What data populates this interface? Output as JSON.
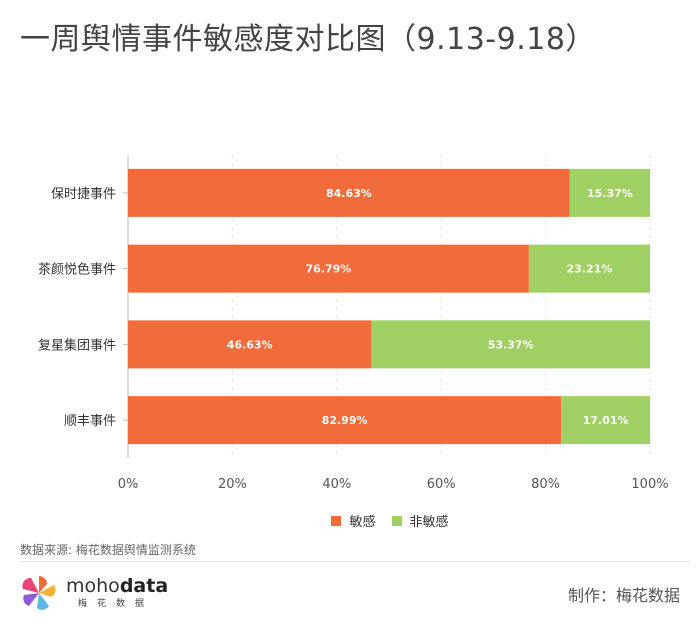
{
  "title": "一周舆情事件敏感度对比图（9.13-9.18）",
  "source": "数据来源: 梅花数据舆情监测系统",
  "brand": {
    "name_light": "moho",
    "name_bold": "data",
    "subtitle": "梅花数据"
  },
  "credit": "制作：梅花数据",
  "colors": {
    "sensitive": "#F26B3A",
    "non_sensitive": "#A0CF63",
    "grid": "#e6e6e6",
    "axis": "#bbbbbb"
  },
  "legend": [
    {
      "label": "敏感",
      "color": "#F26B3A"
    },
    {
      "label": "非敏感",
      "color": "#A0CF63"
    }
  ],
  "chart_data": {
    "type": "bar",
    "orientation": "horizontal",
    "stacked": true,
    "categories": [
      "保时捷事件",
      "茶颜悦色事件",
      "复星集团事件",
      "顺丰事件"
    ],
    "series": [
      {
        "name": "敏感",
        "values": [
          84.63,
          76.79,
          46.63,
          82.99
        ],
        "labels": [
          "84.63%",
          "76.79%",
          "46.63%",
          "82.99%"
        ]
      },
      {
        "name": "非敏感",
        "values": [
          15.37,
          23.21,
          53.37,
          17.01
        ],
        "labels": [
          "15.37%",
          "23.21%",
          "53.37%",
          "17.01%"
        ]
      }
    ],
    "x_ticks": [
      "0%",
      "20%",
      "40%",
      "60%",
      "80%",
      "100%"
    ],
    "xlim": [
      0,
      100
    ],
    "grid": true,
    "legend_position": "bottom"
  }
}
